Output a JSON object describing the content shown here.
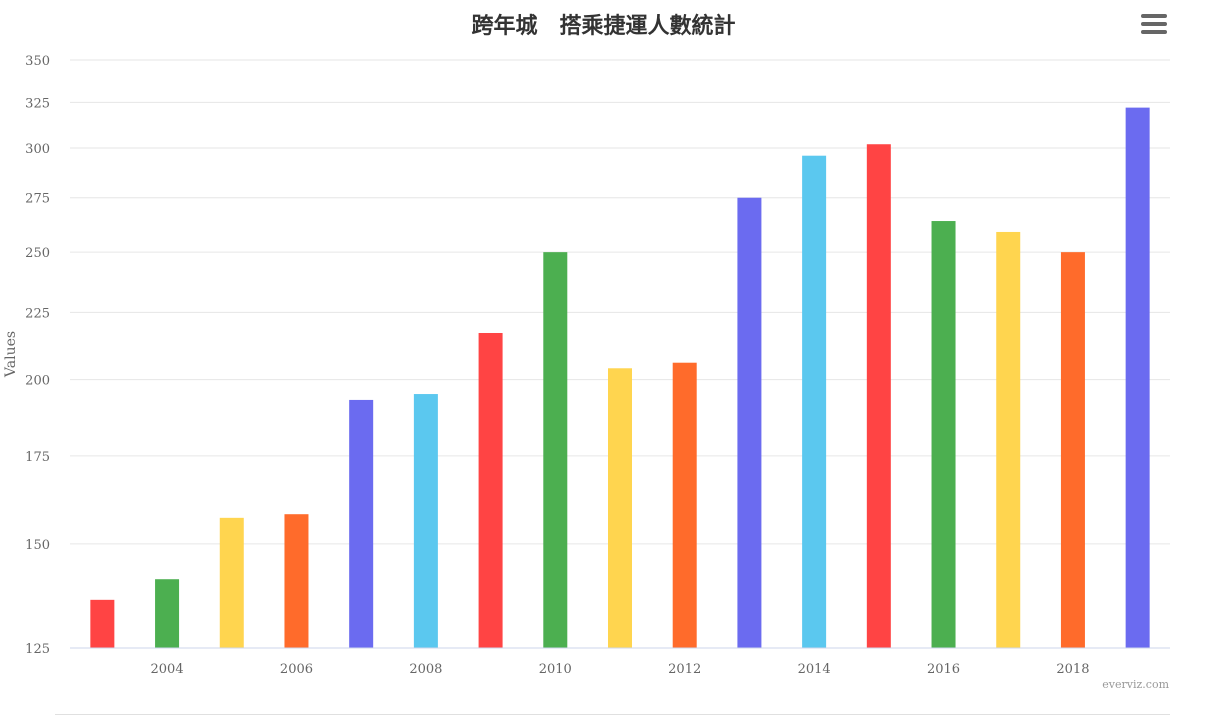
{
  "chart_data": {
    "type": "bar",
    "title": "跨年城　搭乘捷運人數統計",
    "ylabel": "Values",
    "xlabel": "",
    "y_scale": "log",
    "ylim": [
      125,
      350
    ],
    "yticks": [
      125,
      150,
      175,
      200,
      225,
      250,
      275,
      300,
      325,
      350
    ],
    "xlim": [
      2002.5,
      2019.5
    ],
    "xticks": [
      2004,
      2006,
      2008,
      2010,
      2012,
      2014,
      2016,
      2018
    ],
    "grid": true,
    "legend": "none",
    "x": [
      2003,
      2004,
      2005,
      2006,
      2007,
      2008,
      2009,
      2010,
      2011,
      2012,
      2013,
      2014,
      2015,
      2016,
      2017,
      2018,
      2019
    ],
    "values": [
      136,
      141,
      157,
      158,
      193,
      195,
      217,
      250,
      204,
      206,
      275,
      296,
      302,
      264,
      259,
      250,
      322
    ],
    "colors": [
      "#ff4444",
      "#4caf50",
      "#ffd54f",
      "#ff6b2b",
      "#6b6bf0",
      "#5bc8ef",
      "#ff4444",
      "#4caf50",
      "#ffd54f",
      "#ff6b2b",
      "#6b6bf0",
      "#5bc8ef",
      "#ff4444",
      "#4caf50",
      "#ffd54f",
      "#ff6b2b",
      "#6b6bf0"
    ]
  },
  "menu": {
    "icon": "hamburger-menu-icon"
  },
  "credit": "everviz.com"
}
